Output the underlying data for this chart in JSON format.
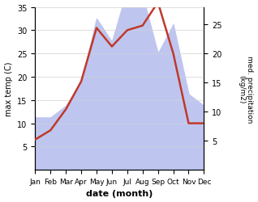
{
  "months": [
    "Jan",
    "Feb",
    "Mar",
    "Apr",
    "May",
    "Jun",
    "Jul",
    "Aug",
    "Sep",
    "Oct",
    "Nov",
    "Dec"
  ],
  "temperature": [
    6.5,
    8.5,
    13.0,
    19.0,
    30.5,
    26.5,
    30.0,
    31.0,
    36.0,
    25.0,
    10.0,
    10.0
  ],
  "precipitation": [
    9,
    9,
    11,
    15,
    26,
    22,
    31,
    30,
    20,
    25,
    13,
    11
  ],
  "temp_color": "#c0392b",
  "precip_fill_color": "#bec6f0",
  "xlabel": "date (month)",
  "ylabel_left": "max temp (C)",
  "ylabel_right": "med. precipitation\n(kg/m2)",
  "ylim_left": [
    0,
    35
  ],
  "ylim_right": [
    0,
    28
  ],
  "left_ticks": [
    5,
    10,
    15,
    20,
    25,
    30,
    35
  ],
  "right_ticks": [
    5,
    10,
    15,
    20,
    25
  ],
  "background_color": "#ffffff"
}
